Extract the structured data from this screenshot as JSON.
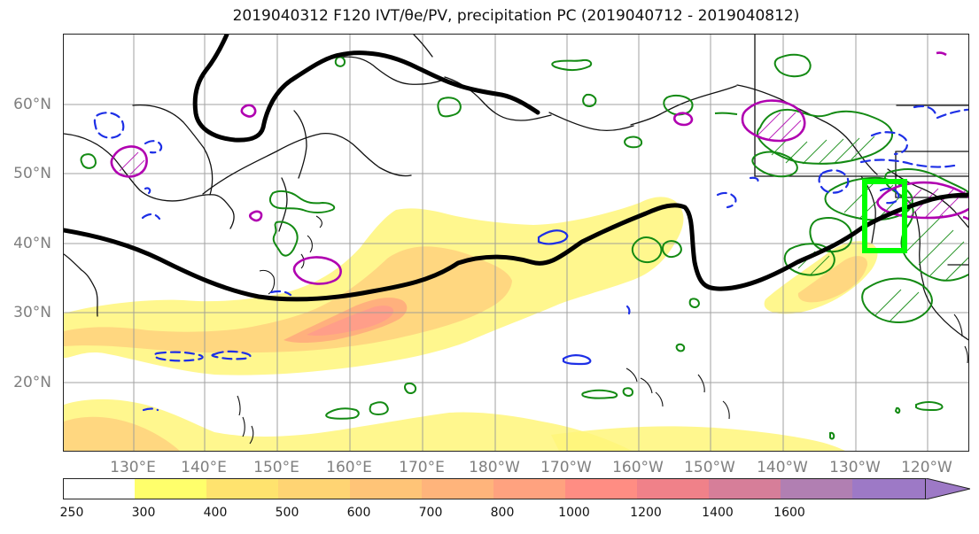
{
  "figure": {
    "title": "2019040312 F120 IVT/θe/PV, precipitation PC (2019040712 - 2019040812)"
  },
  "map": {
    "lat_labels": [
      "60°N",
      "50°N",
      "40°N",
      "30°N",
      "20°N"
    ],
    "lon_labels": [
      "130°E",
      "140°E",
      "150°E",
      "160°E",
      "170°E",
      "180°W",
      "170°W",
      "160°W",
      "150°W",
      "140°W",
      "130°W",
      "120°W"
    ],
    "layers": [
      "IVT shading",
      "theta-e contour (black)",
      "PV contours (green)",
      "PV contours (blue dashed)",
      "precipitation PC contours (magenta)",
      "target box (bright green)"
    ],
    "colors": {
      "ivt_low": "#fff67a",
      "ivt_mid": "#ffd57f",
      "ivt_high": "#ff9d8a",
      "theta_e": "#000000",
      "pv_positive": "#138a13",
      "pv_negative": "#1d2fe6",
      "precip_pc": "#b000b0",
      "target_box": "#00ff00",
      "grid": "#999999",
      "coast": "#111111"
    }
  },
  "colorbar": {
    "ticks": [
      "250",
      "300",
      "400",
      "500",
      "600",
      "700",
      "800",
      "1000",
      "1200",
      "1400",
      "1600"
    ],
    "colors": [
      "#ffffff",
      "#ffff6b",
      "#ffe36e",
      "#ffd473",
      "#ffc477",
      "#ffb47b",
      "#ffa27f",
      "#ff8d83",
      "#f08189",
      "#d67e99",
      "#b17fb2",
      "#9d79c6"
    ],
    "arrow_color": "#9d79c6"
  }
}
